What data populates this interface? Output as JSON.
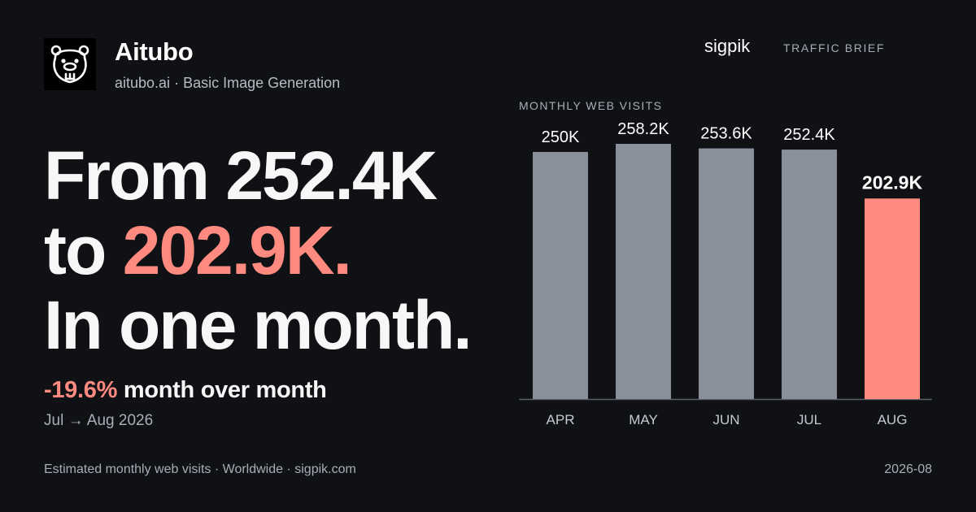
{
  "brand": {
    "name": "Aitubo",
    "domain": "aitubo.ai",
    "separator": " · ",
    "category": "Basic Image Generation",
    "logo_icon": "beaver-icon"
  },
  "publisher": {
    "name": "sigpik",
    "label": "TRAFFIC BRIEF"
  },
  "headline": {
    "line1": "From 252.4K",
    "line2_prefix": "to ",
    "line2_highlight": "202.9K.",
    "line3": "In one month."
  },
  "change": {
    "percent": "-19.6%",
    "label": " month over month"
  },
  "period": "Jul → Aug 2026",
  "footer": {
    "source": "Estimated monthly web visits · Worldwide · sigpik.com",
    "date": "2026-08"
  },
  "colors": {
    "background": "#0f1115",
    "bar": "#8a8f9c",
    "highlight": "#ff8a80"
  },
  "chart_data": {
    "type": "bar",
    "title": "MONTHLY WEB VISITS",
    "categories": [
      "APR",
      "MAY",
      "JUN",
      "JUL",
      "AUG"
    ],
    "values": [
      250.0,
      258.2,
      253.6,
      252.4,
      202.9
    ],
    "value_labels": [
      "250K",
      "258.2K",
      "253.6K",
      "252.4K",
      "202.9K"
    ],
    "unit": "K",
    "highlight_index": 4,
    "ylim": [
      0,
      258.2
    ],
    "grid": false,
    "legend": "none"
  }
}
